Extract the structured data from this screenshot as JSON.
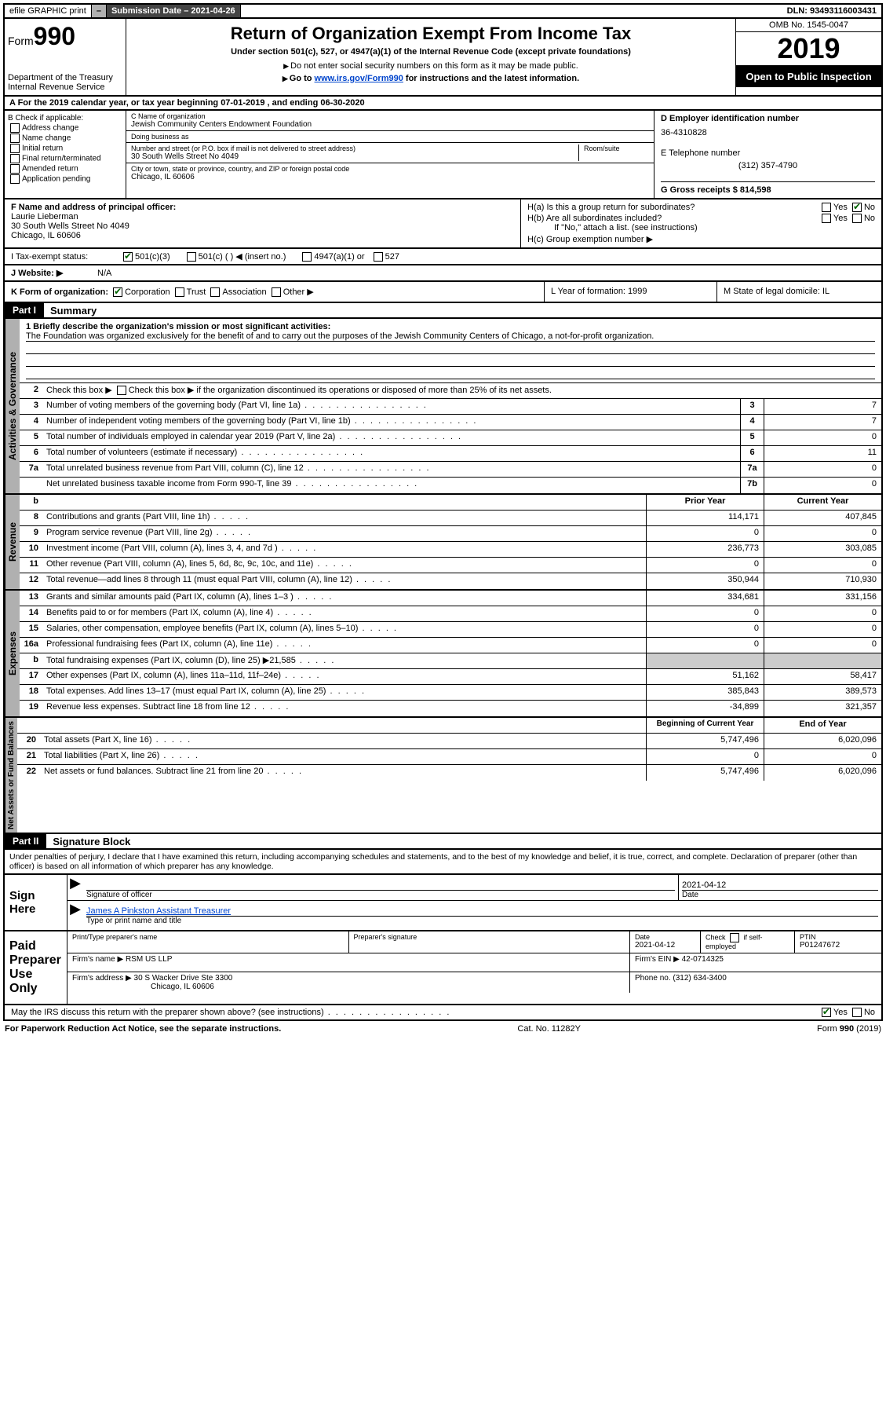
{
  "topbar": {
    "efile_label": "efile GRAPHIC print",
    "toggle": "–",
    "submission_label": "Submission Date – 2021-04-26",
    "dln_label": "DLN: 93493116003431"
  },
  "header": {
    "form_word": "Form",
    "form_num": "990",
    "dept": "Department of the Treasury\nInternal Revenue Service",
    "title": "Return of Organization Exempt From Income Tax",
    "subtitle": "Under section 501(c), 527, or 4947(a)(1) of the Internal Revenue Code (except private foundations)",
    "warn1": "Do not enter social security numbers on this form as it may be made public.",
    "warn2_pre": "Go to ",
    "warn2_link": "www.irs.gov/Form990",
    "warn2_post": " for instructions and the latest information.",
    "omb": "OMB No. 1545-0047",
    "year": "2019",
    "open": "Open to Public Inspection"
  },
  "line_a": "A   For the 2019 calendar year, or tax year beginning 07-01-2019    , and ending 06-30-2020",
  "box_b": {
    "heading": "B Check if applicable:",
    "items": [
      "Address change",
      "Name change",
      "Initial return",
      "Final return/terminated",
      "Amended return",
      "Application pending"
    ]
  },
  "box_c": {
    "name_lbl": "C Name of organization",
    "name": "Jewish Community Centers Endowment Foundation",
    "dba_lbl": "Doing business as",
    "dba": "",
    "street_lbl": "Number and street (or P.O. box if mail is not delivered to street address)",
    "street": "30 South Wells Street No 4049",
    "room_lbl": "Room/suite",
    "city_lbl": "City or town, state or province, country, and ZIP or foreign postal code",
    "city": "Chicago, IL  60606"
  },
  "box_d": {
    "lbl": "D Employer identification number",
    "val": "36-4310828"
  },
  "box_e": {
    "lbl": "E Telephone number",
    "val": "(312) 357-4790"
  },
  "box_g": {
    "lbl": "G Gross receipts $ 814,598"
  },
  "box_f": {
    "lbl": "F  Name and address of principal officer:",
    "name": "Laurie Lieberman",
    "street": "30 South Wells Street No 4049",
    "city": "Chicago, IL  60606"
  },
  "box_h": {
    "a": "H(a)  Is this a group return for subordinates?",
    "b": "H(b)  Are all subordinates included?",
    "b_note": "If \"No,\" attach a list. (see instructions)",
    "c": "H(c)  Group exemption number ▶",
    "yes": "Yes",
    "no": "No"
  },
  "line_i": {
    "lbl": "I   Tax-exempt status:",
    "opts": [
      "501(c)(3)",
      "501(c) (  ) ◀ (insert no.)",
      "4947(a)(1) or",
      "527"
    ]
  },
  "line_j": {
    "lbl": "J   Website: ▶",
    "val": "N/A"
  },
  "line_k": {
    "lbl": "K Form of organization:",
    "opts": [
      "Corporation",
      "Trust",
      "Association",
      "Other ▶"
    ]
  },
  "line_l": {
    "lbl": "L Year of formation: 1999"
  },
  "line_m": {
    "lbl": "M State of legal domicile: IL"
  },
  "part1": {
    "hdr": "Part I",
    "title": "Summary"
  },
  "mission": {
    "lbl": "1   Briefly describe the organization's mission or most significant activities:",
    "text": "The Foundation was organized exclusively for the benefit of and to carry out the purposes of the Jewish Community Centers of Chicago, a not-for-profit organization."
  },
  "line2": "Check this box ▶        if the organization discontinued its operations or disposed of more than 25% of its net assets.",
  "gov_rows": [
    {
      "n": "3",
      "t": "Number of voting members of the governing body (Part VI, line 1a)",
      "box": "3",
      "v": "7"
    },
    {
      "n": "4",
      "t": "Number of independent voting members of the governing body (Part VI, line 1b)",
      "box": "4",
      "v": "7"
    },
    {
      "n": "5",
      "t": "Total number of individuals employed in calendar year 2019 (Part V, line 2a)",
      "box": "5",
      "v": "0"
    },
    {
      "n": "6",
      "t": "Total number of volunteers (estimate if necessary)",
      "box": "6",
      "v": "11"
    },
    {
      "n": "7a",
      "t": "Total unrelated business revenue from Part VIII, column (C), line 12",
      "box": "7a",
      "v": "0"
    },
    {
      "n": "",
      "t": "Net unrelated business taxable income from Form 990-T, line 39",
      "box": "7b",
      "v": "0"
    }
  ],
  "twocol_hdr": {
    "prior": "Prior Year",
    "current": "Current Year"
  },
  "revenue_rows": [
    {
      "n": "8",
      "t": "Contributions and grants (Part VIII, line 1h)",
      "p": "114,171",
      "c": "407,845"
    },
    {
      "n": "9",
      "t": "Program service revenue (Part VIII, line 2g)",
      "p": "0",
      "c": "0"
    },
    {
      "n": "10",
      "t": "Investment income (Part VIII, column (A), lines 3, 4, and 7d )",
      "p": "236,773",
      "c": "303,085"
    },
    {
      "n": "11",
      "t": "Other revenue (Part VIII, column (A), lines 5, 6d, 8c, 9c, 10c, and 11e)",
      "p": "0",
      "c": "0"
    },
    {
      "n": "12",
      "t": "Total revenue—add lines 8 through 11 (must equal Part VIII, column (A), line 12)",
      "p": "350,944",
      "c": "710,930"
    }
  ],
  "expense_rows": [
    {
      "n": "13",
      "t": "Grants and similar amounts paid (Part IX, column (A), lines 1–3 )",
      "p": "334,681",
      "c": "331,156"
    },
    {
      "n": "14",
      "t": "Benefits paid to or for members (Part IX, column (A), line 4)",
      "p": "0",
      "c": "0"
    },
    {
      "n": "15",
      "t": "Salaries, other compensation, employee benefits (Part IX, column (A), lines 5–10)",
      "p": "0",
      "c": "0"
    },
    {
      "n": "16a",
      "t": "Professional fundraising fees (Part IX, column (A), line 11e)",
      "p": "0",
      "c": "0"
    },
    {
      "n": "b",
      "t": "Total fundraising expenses (Part IX, column (D), line 25) ▶21,585",
      "p": "",
      "c": "",
      "shade": true
    },
    {
      "n": "17",
      "t": "Other expenses (Part IX, column (A), lines 11a–11d, 11f–24e)",
      "p": "51,162",
      "c": "58,417"
    },
    {
      "n": "18",
      "t": "Total expenses. Add lines 13–17 (must equal Part IX, column (A), line 25)",
      "p": "385,843",
      "c": "389,573"
    },
    {
      "n": "19",
      "t": "Revenue less expenses. Subtract line 18 from line 12",
      "p": "-34,899",
      "c": "321,357"
    }
  ],
  "netassets_hdr": {
    "beg": "Beginning of Current Year",
    "end": "End of Year"
  },
  "netassets_rows": [
    {
      "n": "20",
      "t": "Total assets (Part X, line 16)",
      "p": "5,747,496",
      "c": "6,020,096"
    },
    {
      "n": "21",
      "t": "Total liabilities (Part X, line 26)",
      "p": "0",
      "c": "0"
    },
    {
      "n": "22",
      "t": "Net assets or fund balances. Subtract line 21 from line 20",
      "p": "5,747,496",
      "c": "6,020,096"
    }
  ],
  "tabs": {
    "gov": "Activities & Governance",
    "rev": "Revenue",
    "exp": "Expenses",
    "net": "Net Assets or Fund Balances"
  },
  "part2": {
    "hdr": "Part II",
    "title": "Signature Block"
  },
  "perjury": "Under penalties of perjury, I declare that I have examined this return, including accompanying schedules and statements, and to the best of my knowledge and belief, it is true, correct, and complete. Declaration of preparer (other than officer) is based on all information of which preparer has any knowledge.",
  "sign": {
    "here": "Sign Here",
    "sig_lbl": "Signature of officer",
    "date_lbl": "Date",
    "date_val": "2021-04-12",
    "name": "James A Pinkston  Assistant Treasurer",
    "name_lbl": "Type or print name and title"
  },
  "prep": {
    "here": "Paid Preparer Use Only",
    "h1": "Print/Type preparer's name",
    "h2": "Preparer's signature",
    "h3": "Date",
    "h3v": "2021-04-12",
    "h4": "Check        if self-employed",
    "h5": "PTIN",
    "h5v": "P01247672",
    "firm_lbl": "Firm's name   ▶",
    "firm": "RSM US LLP",
    "ein_lbl": "Firm's EIN ▶",
    "ein": "42-0714325",
    "addr_lbl": "Firm's address ▶",
    "addr1": "30 S Wacker Drive Ste 3300",
    "addr2": "Chicago, IL  60606",
    "phone_lbl": "Phone no.",
    "phone": "(312) 634-3400"
  },
  "discuss": "May the IRS discuss this return with the preparer shown above? (see instructions)",
  "footer": {
    "left": "For Paperwork Reduction Act Notice, see the separate instructions.",
    "mid": "Cat. No. 11282Y",
    "right": "Form 990 (2019)"
  }
}
